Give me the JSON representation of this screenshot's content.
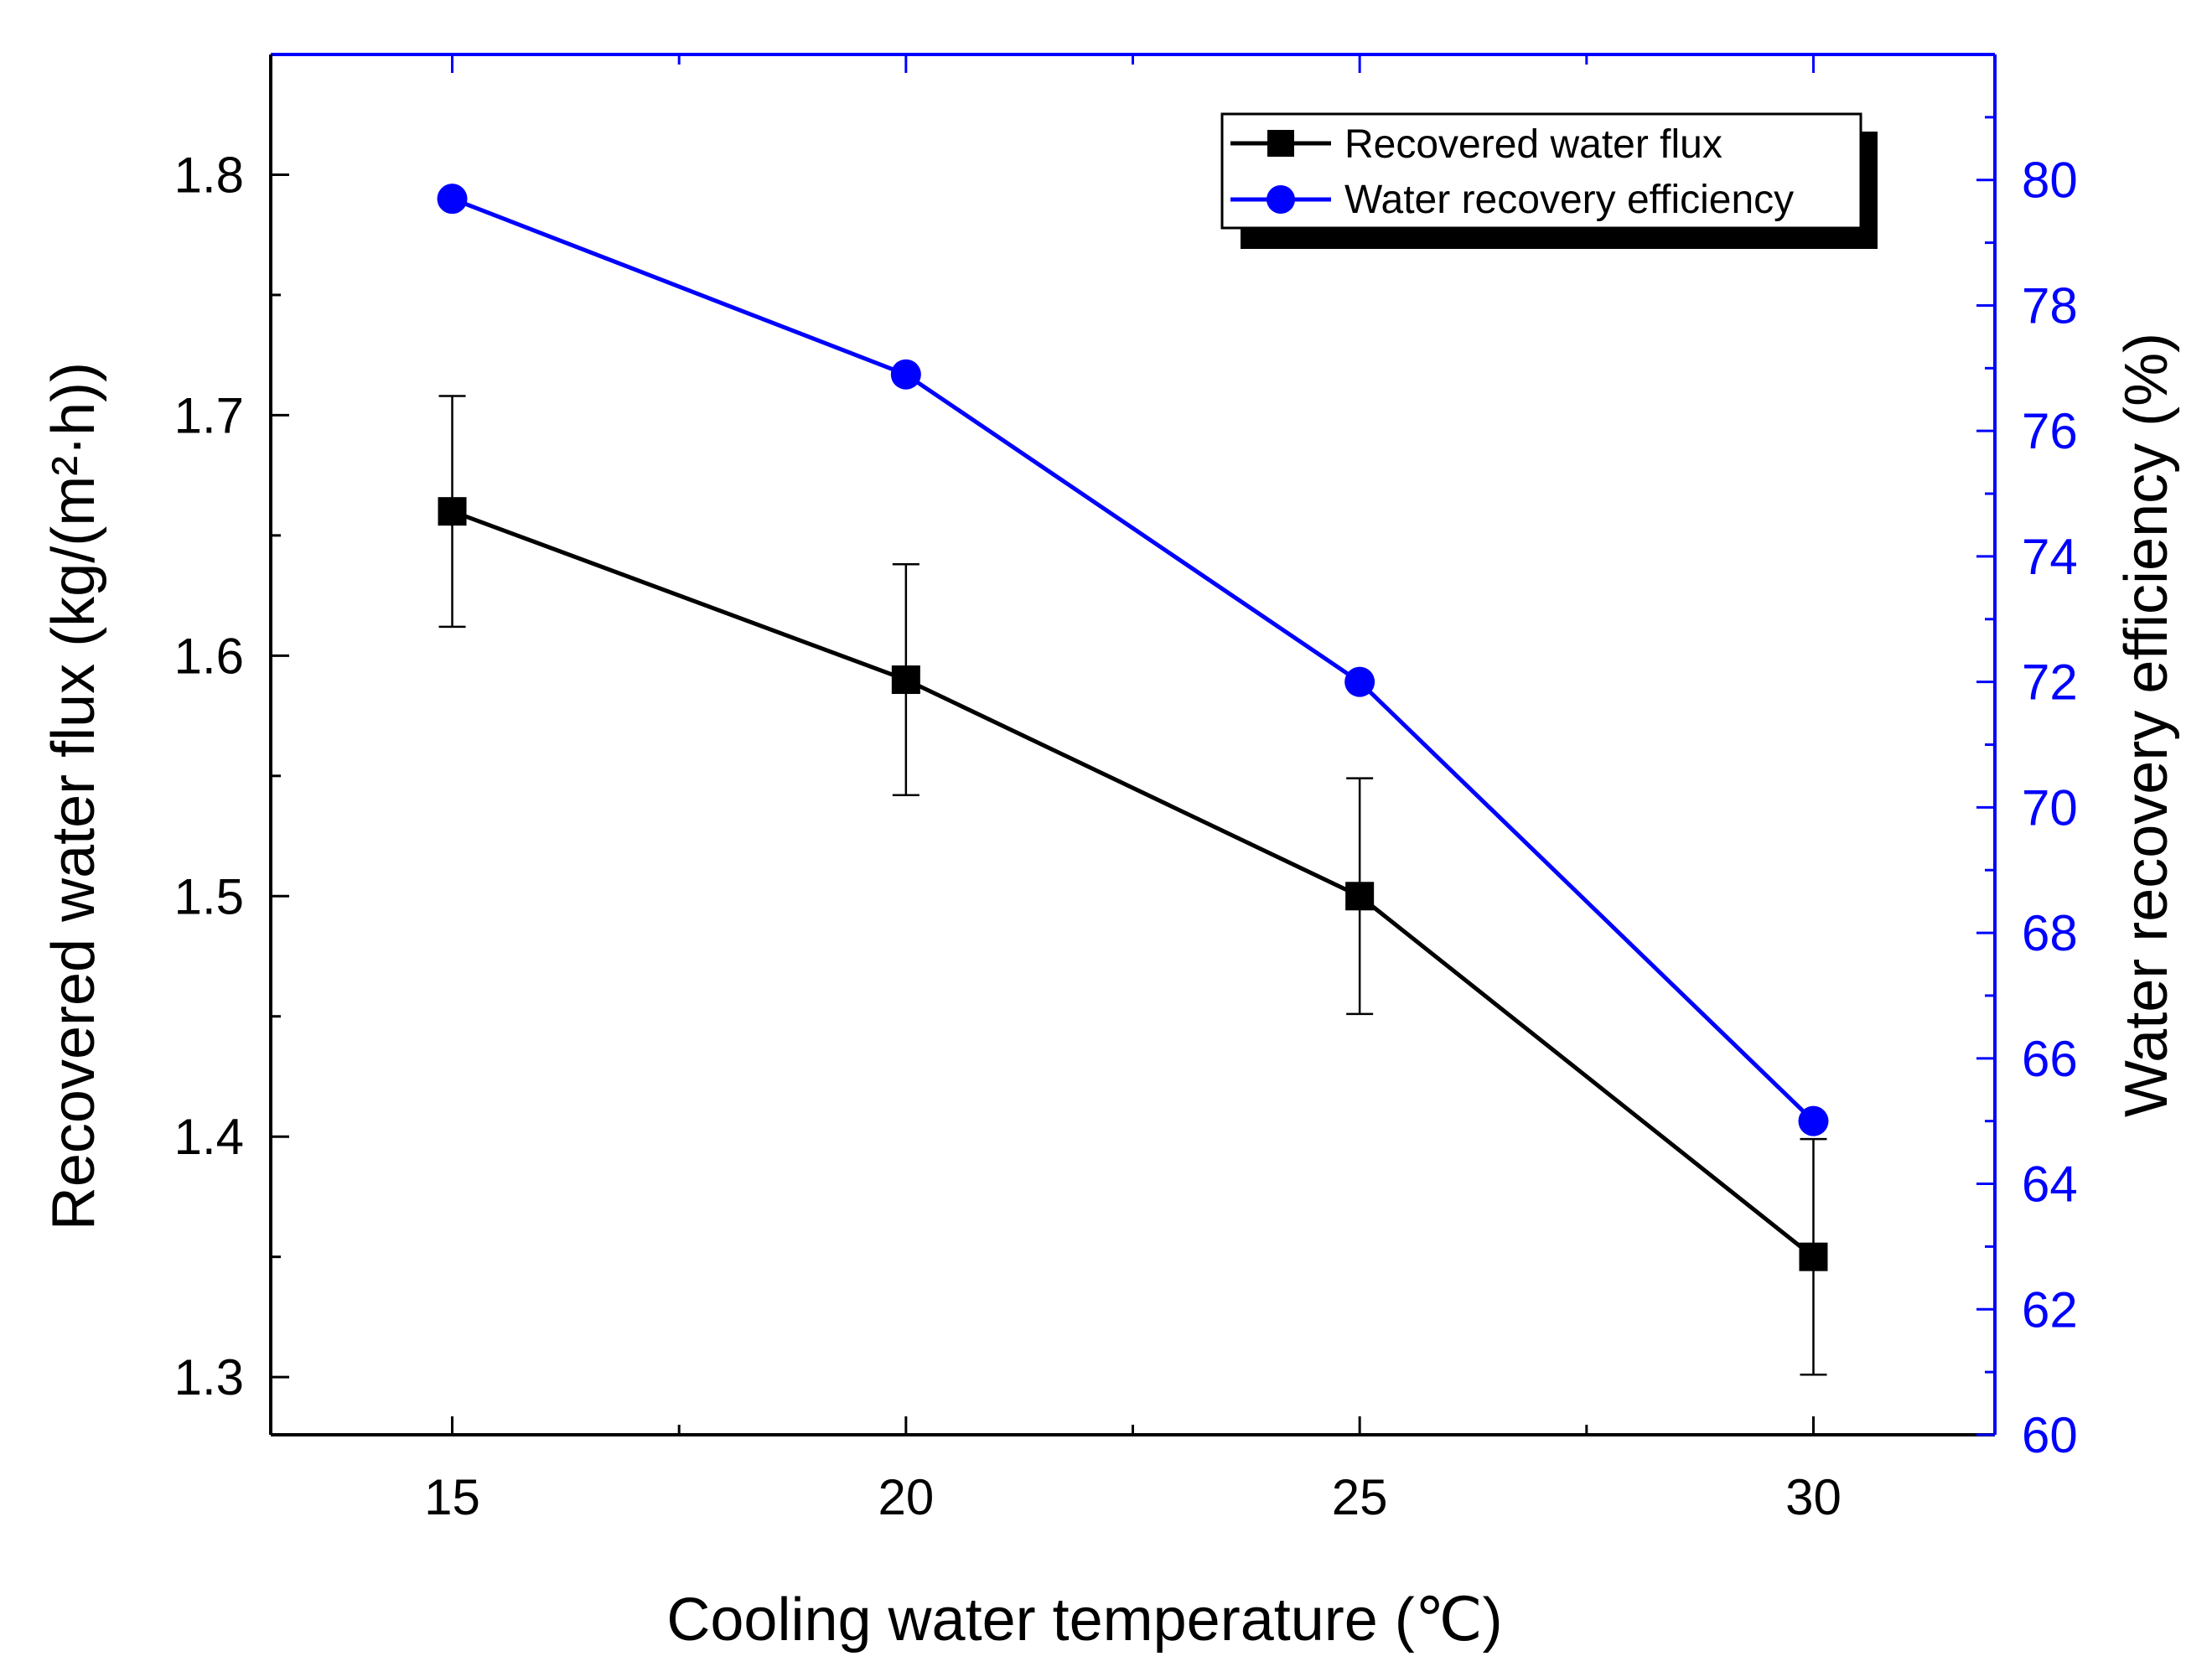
{
  "chart_data": {
    "type": "line",
    "x": [
      15,
      20,
      25,
      30
    ],
    "xlabel": "Cooling water temperature (℃)",
    "xlim": [
      13,
      32
    ],
    "xticks": [
      15,
      20,
      25,
      30
    ],
    "ylabel_left": "Recovered water flux (kg/(m²·h))",
    "ylim_left": [
      1.276,
      1.85
    ],
    "yticks_left": [
      1.3,
      1.4,
      1.5,
      1.6,
      1.7,
      1.8
    ],
    "ylabel_right": "Water recovery efficiency (%)",
    "ylim_right": [
      60,
      82
    ],
    "yticks_right": [
      60,
      62,
      64,
      66,
      68,
      70,
      72,
      74,
      76,
      78,
      80
    ],
    "series": [
      {
        "name": "Recovered water flux",
        "axis": "left",
        "marker": "square",
        "color": "#000000",
        "values": [
          1.66,
          1.59,
          1.5,
          1.35
        ],
        "error": [
          0.048,
          0.048,
          0.049,
          0.049
        ]
      },
      {
        "name": "Water recovery efficiency",
        "axis": "right",
        "marker": "circle",
        "color": "#0000ff",
        "values": [
          79.7,
          76.9,
          72.0,
          65.0
        ]
      }
    ],
    "legend_position": "top-right",
    "grid": false
  },
  "colors": {
    "left_axis": "#000000",
    "right_axis": "#0000ff",
    "background": "#ffffff"
  }
}
